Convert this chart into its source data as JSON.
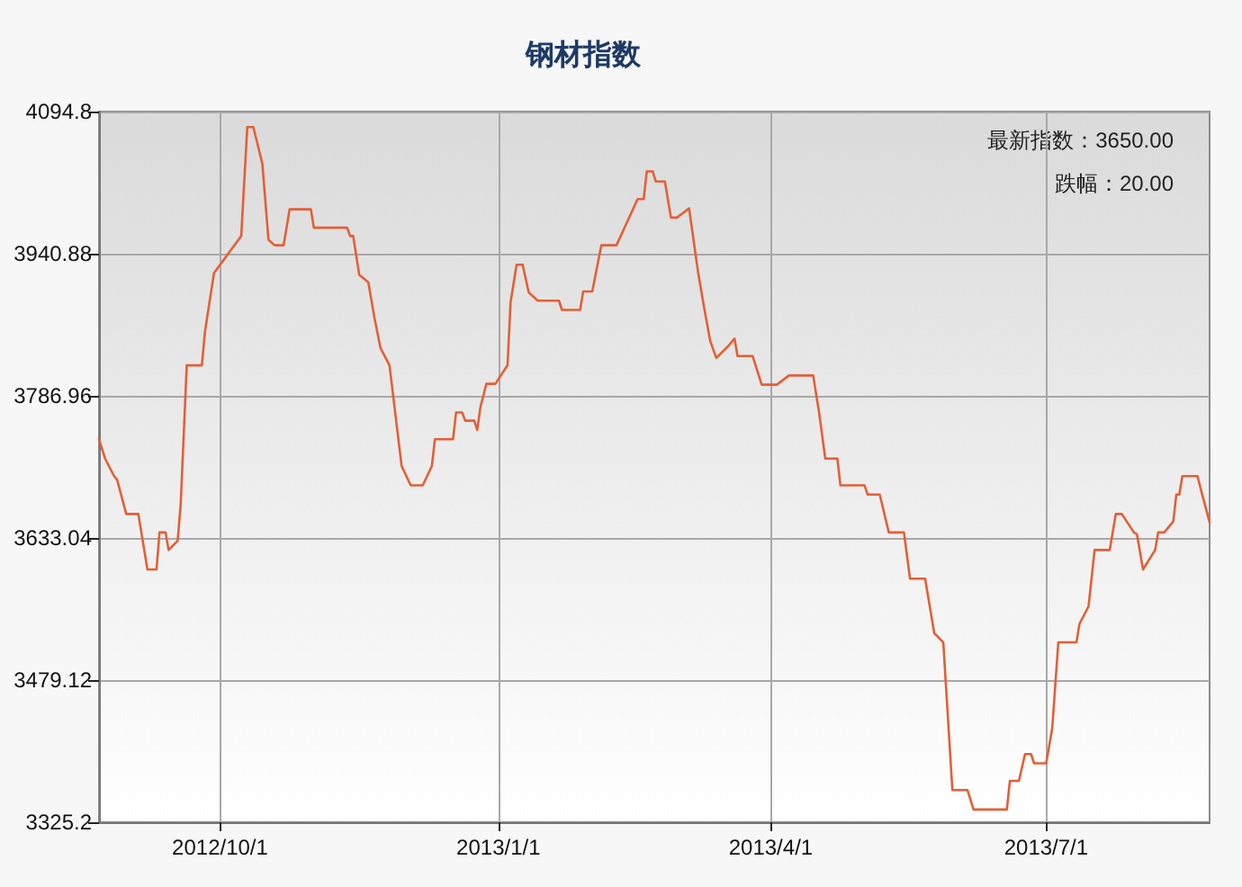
{
  "chart_data": {
    "type": "line",
    "title": "钢材指数",
    "annotations": [
      "最新指数：3650.00",
      "跌幅：20.00"
    ],
    "x": [
      "2012-08-22",
      "2012-08-24",
      "2012-08-27",
      "2012-08-28",
      "2012-08-31",
      "2012-09-04",
      "2012-09-07",
      "2012-09-10",
      "2012-09-11",
      "2012-09-13",
      "2012-09-14",
      "2012-09-17",
      "2012-09-18",
      "2012-09-20",
      "2012-09-25",
      "2012-09-26",
      "2012-09-29",
      "2012-10-08",
      "2012-10-10",
      "2012-10-12",
      "2012-10-15",
      "2012-10-17",
      "2012-10-19",
      "2012-10-22",
      "2012-10-24",
      "2012-10-31",
      "2012-11-01",
      "2012-11-12",
      "2012-11-13",
      "2012-11-14",
      "2012-11-16",
      "2012-11-19",
      "2012-11-21",
      "2012-11-23",
      "2012-11-26",
      "2012-11-30",
      "2012-12-03",
      "2012-12-07",
      "2012-12-10",
      "2012-12-11",
      "2012-12-17",
      "2012-12-18",
      "2012-12-20",
      "2012-12-21",
      "2012-12-24",
      "2012-12-25",
      "2012-12-26",
      "2012-12-28",
      "2012-12-31",
      "2013-01-04",
      "2013-01-05",
      "2013-01-07",
      "2013-01-09",
      "2013-01-11",
      "2013-01-14",
      "2013-01-21",
      "2013-01-22",
      "2013-01-28",
      "2013-01-29",
      "2013-02-01",
      "2013-02-04",
      "2013-02-09",
      "2013-02-16",
      "2013-02-18",
      "2013-02-19",
      "2013-02-21",
      "2013-02-22",
      "2013-02-25",
      "2013-02-27",
      "2013-03-01",
      "2013-03-05",
      "2013-03-08",
      "2013-03-10",
      "2013-03-12",
      "2013-03-14",
      "2013-03-18",
      "2013-03-20",
      "2013-03-21",
      "2013-03-26",
      "2013-03-29",
      "2013-04-03",
      "2013-04-07",
      "2013-04-15",
      "2013-04-17",
      "2013-04-19",
      "2013-04-23",
      "2013-04-24",
      "2013-05-02",
      "2013-05-03",
      "2013-05-07",
      "2013-05-10",
      "2013-05-15",
      "2013-05-17",
      "2013-05-22",
      "2013-05-25",
      "2013-05-28",
      "2013-05-31",
      "2013-06-05",
      "2013-06-07",
      "2013-06-18",
      "2013-06-19",
      "2013-06-22",
      "2013-06-24",
      "2013-06-26",
      "2013-06-27",
      "2013-07-01",
      "2013-07-03",
      "2013-07-05",
      "2013-07-11",
      "2013-07-12",
      "2013-07-15",
      "2013-07-17",
      "2013-07-22",
      "2013-07-24",
      "2013-07-26",
      "2013-07-30",
      "2013-07-31",
      "2013-08-02",
      "2013-08-06",
      "2013-08-07",
      "2013-08-09",
      "2013-08-12",
      "2013-08-13",
      "2013-08-14",
      "2013-08-15",
      "2013-08-20",
      "2013-08-21",
      "2013-08-24"
    ],
    "series": [
      {
        "color": "#e45f35",
        "values": [
          3740,
          3719,
          3700,
          3696,
          3659,
          3659,
          3599,
          3599,
          3639,
          3639,
          3620,
          3630,
          3670,
          3820,
          3820,
          3856,
          3920,
          3960,
          4078,
          4078,
          4038,
          3956,
          3950,
          3950,
          3989,
          3989,
          3969,
          3969,
          3960,
          3960,
          3918,
          3910,
          3872,
          3839,
          3820,
          3711,
          3690,
          3690,
          3711,
          3740,
          3740,
          3769,
          3769,
          3760,
          3760,
          3750,
          3774,
          3800,
          3800,
          3820,
          3888,
          3929,
          3929,
          3899,
          3890,
          3890,
          3880,
          3880,
          3900,
          3900,
          3950,
          3950,
          4000,
          4000,
          4030,
          4030,
          4019,
          4019,
          3980,
          3980,
          3990,
          3920,
          3882,
          3846,
          3828,
          3841,
          3849,
          3830,
          3830,
          3799,
          3799,
          3809,
          3809,
          3768,
          3719,
          3719,
          3690,
          3690,
          3680,
          3680,
          3639,
          3639,
          3589,
          3589,
          3530,
          3520,
          3360,
          3360,
          3339,
          3339,
          3370,
          3370,
          3399,
          3399,
          3389,
          3389,
          3427,
          3520,
          3520,
          3540,
          3559,
          3620,
          3620,
          3659,
          3659,
          3639,
          3637,
          3599,
          3620,
          3639,
          3639,
          3651,
          3680,
          3680,
          3700,
          3700,
          3687,
          3650
        ]
      }
    ],
    "xlim": [
      "2012-08-22",
      "2013-08-24"
    ],
    "xticks": [
      {
        "value": "2012-10-01",
        "label": "2012/10/1"
      },
      {
        "value": "2013-01-01",
        "label": "2013/1/1"
      },
      {
        "value": "2013-04-01",
        "label": "2013/4/1"
      },
      {
        "value": "2013-07-01",
        "label": "2013/7/1"
      }
    ],
    "ylim": [
      3325.2,
      4094.8
    ],
    "yticks": [
      3325.2,
      3479.12,
      3633.04,
      3786.96,
      3940.88,
      4094.8
    ],
    "grid": true,
    "marker": "none",
    "line_style": "solid"
  }
}
